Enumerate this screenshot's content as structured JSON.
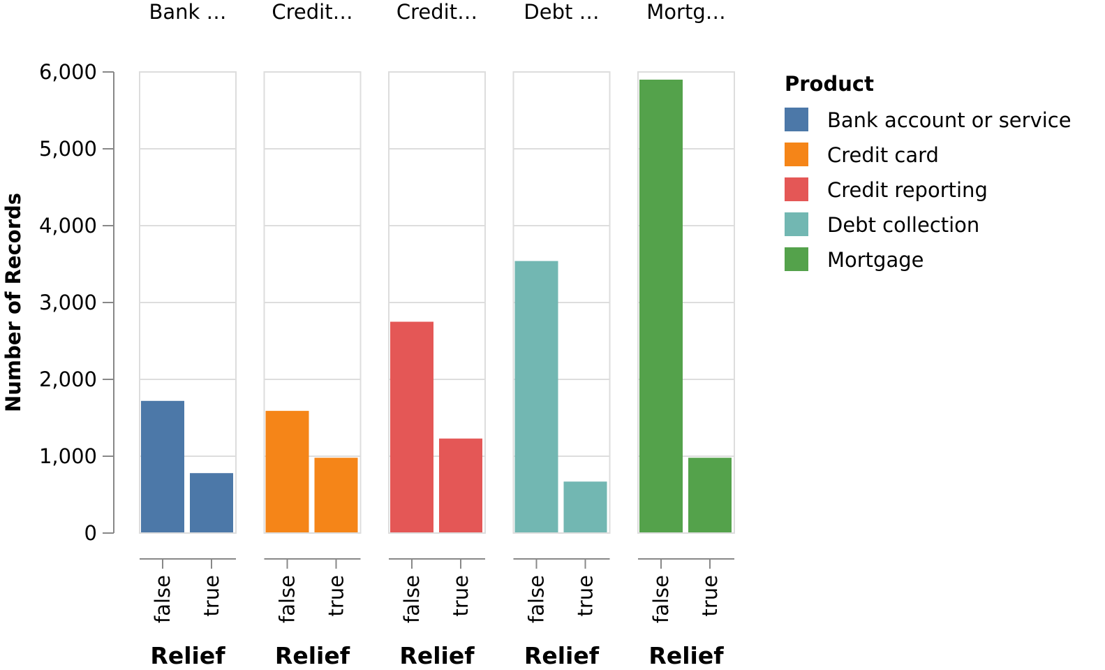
{
  "chart_data": {
    "type": "bar",
    "facet_field": "Product",
    "y_axis_title": "Number of Records",
    "x_axis_title": "Relief",
    "y_domain": [
      0,
      6000
    ],
    "y_ticks": [
      {
        "value": 0,
        "label": "0"
      },
      {
        "value": 1000,
        "label": "1,000"
      },
      {
        "value": 2000,
        "label": "2,000"
      },
      {
        "value": 3000,
        "label": "3,000"
      },
      {
        "value": 4000,
        "label": "4,000"
      },
      {
        "value": 5000,
        "label": "5,000"
      },
      {
        "value": 6000,
        "label": "6,000"
      }
    ],
    "grid": true,
    "categories": [
      "false",
      "true"
    ],
    "facets": [
      {
        "header": "Bank …",
        "product": "Bank account or service",
        "color": "#4c78a8",
        "values": [
          1720,
          780
        ]
      },
      {
        "header": "Credit…",
        "product": "Credit card",
        "color": "#f58518",
        "values": [
          1590,
          980
        ]
      },
      {
        "header": "Credit…",
        "product": "Credit reporting",
        "color": "#e45756",
        "values": [
          2750,
          1230
        ]
      },
      {
        "header": "Debt …",
        "product": "Debt collection",
        "color": "#72b7b2",
        "values": [
          3540,
          670
        ]
      },
      {
        "header": "Mortg…",
        "product": "Mortgage",
        "color": "#54a24b",
        "values": [
          5900,
          980
        ]
      }
    ],
    "legend": {
      "title": "Product",
      "position": "right",
      "items": [
        {
          "label": "Bank account or service",
          "color": "#4c78a8"
        },
        {
          "label": "Credit card",
          "color": "#f58518"
        },
        {
          "label": "Credit reporting",
          "color": "#e45756"
        },
        {
          "label": "Debt collection",
          "color": "#72b7b2"
        },
        {
          "label": "Mortgage",
          "color": "#54a24b"
        }
      ]
    }
  }
}
